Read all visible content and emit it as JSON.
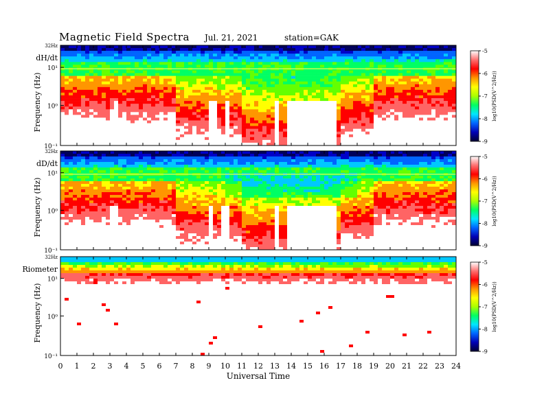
{
  "header": {
    "title": "Magnetic  Field  Spectra",
    "date": "Jul.  21, 2021",
    "station": "station=GAK"
  },
  "colors": {
    "scale": [
      "#00005a",
      "#0000c8",
      "#0064ff",
      "#00c8ff",
      "#00ff64",
      "#64ff00",
      "#ffff00",
      "#ff9600",
      "#ff0000",
      "#ff6464",
      "#ffffff"
    ]
  },
  "chart_data": [
    {
      "type": "heatmap",
      "panel_label": "dH/dt",
      "ylabel": "Frequency  (Hz)",
      "xlabel": "",
      "top_label": "32Hz",
      "y_ticks": [
        "10¹",
        "10⁰",
        "10⁻¹"
      ],
      "xlim": [
        0,
        24
      ],
      "colorbar": {
        "label": "log10(PSD(V^2/Hz))",
        "ticks": [
          "-5",
          "-6",
          "-7",
          "-8",
          "-9"
        ],
        "range": [
          -9,
          -5
        ]
      },
      "quiet_intervals_ut": [
        [
          3.2,
          3.6
        ],
        [
          9.1,
          9.4
        ],
        [
          9.9,
          10.3
        ],
        [
          12.9,
          13.2
        ],
        [
          13.8,
          16.7
        ]
      ]
    },
    {
      "type": "heatmap",
      "panel_label": "dD/dt",
      "ylabel": "Frequency  (Hz)",
      "xlabel": "",
      "top_label": "32Hz",
      "y_ticks": [
        "10¹",
        "10⁰",
        "10⁻¹"
      ],
      "xlim": [
        0,
        24
      ],
      "colorbar": {
        "label": "log10(PSD(V^2/Hz))",
        "ticks": [
          "-5",
          "-6",
          "-7",
          "-8",
          "-9"
        ],
        "range": [
          -9,
          -5
        ]
      },
      "quiet_intervals_ut": [
        [
          3.1,
          3.5
        ],
        [
          9.0,
          9.3
        ],
        [
          9.8,
          10.2
        ],
        [
          12.9,
          13.2
        ],
        [
          13.8,
          16.8
        ]
      ]
    },
    {
      "type": "heatmap",
      "panel_label": "Riometer",
      "ylabel": "Frequency  (Hz)",
      "xlabel": "Universal Time",
      "top_label": "32Hz",
      "y_ticks": [
        "10¹",
        "10⁰",
        "10⁻¹"
      ],
      "x_ticks": [
        "0",
        "1",
        "2",
        "3",
        "4",
        "5",
        "6",
        "7",
        "8",
        "9",
        "10",
        "11",
        "12",
        "13",
        "14",
        "15",
        "16",
        "17",
        "18",
        "19",
        "20",
        "21",
        "22",
        "23",
        "24"
      ],
      "xlim": [
        0,
        24
      ],
      "colorbar": {
        "label": "log10(PSD(V^2/Hz))",
        "ticks": [
          "-5",
          "-6",
          "-7",
          "-8",
          "-9"
        ],
        "range": [
          -9,
          -5
        ]
      }
    }
  ]
}
